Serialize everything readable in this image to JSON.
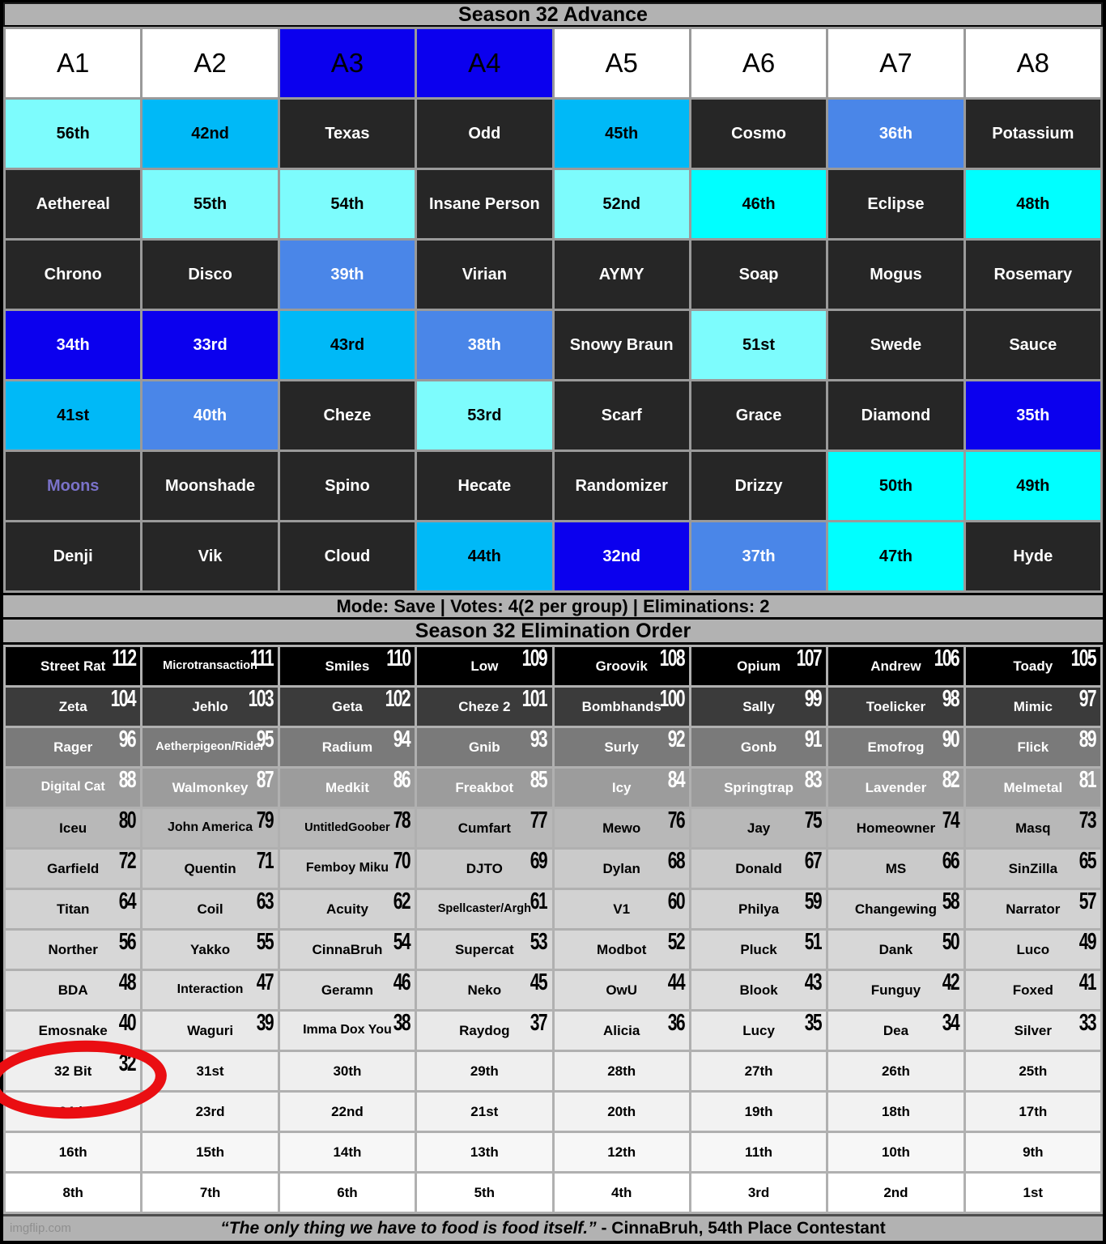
{
  "advance": {
    "title": "Season 32 Advance",
    "columns": [
      {
        "label": "A1",
        "bg": "white"
      },
      {
        "label": "A2",
        "bg": "white"
      },
      {
        "label": "A3",
        "bg": "blue"
      },
      {
        "label": "A4",
        "bg": "blue"
      },
      {
        "label": "A5",
        "bg": "white"
      },
      {
        "label": "A6",
        "bg": "white"
      },
      {
        "label": "A7",
        "bg": "white"
      },
      {
        "label": "A8",
        "bg": "white"
      }
    ],
    "rows": [
      [
        {
          "text": "56th",
          "bg": "palecyan"
        },
        {
          "text": "42nd",
          "bg": "sky"
        },
        {
          "text": "Texas",
          "bg": "dark"
        },
        {
          "text": "Odd",
          "bg": "dark"
        },
        {
          "text": "45th",
          "bg": "sky"
        },
        {
          "text": "Cosmo",
          "bg": "dark"
        },
        {
          "text": "36th",
          "bg": "corn"
        },
        {
          "text": "Potassium",
          "bg": "dark"
        }
      ],
      [
        {
          "text": "Aethereal",
          "bg": "dark"
        },
        {
          "text": "55th",
          "bg": "palecyan"
        },
        {
          "text": "54th",
          "bg": "palecyan"
        },
        {
          "text": "Insane Person",
          "bg": "dark"
        },
        {
          "text": "52nd",
          "bg": "palecyan"
        },
        {
          "text": "46th",
          "bg": "cyan"
        },
        {
          "text": "Eclipse",
          "bg": "dark"
        },
        {
          "text": "48th",
          "bg": "cyan"
        }
      ],
      [
        {
          "text": "Chrono",
          "bg": "dark"
        },
        {
          "text": "Disco",
          "bg": "dark"
        },
        {
          "text": "39th",
          "bg": "corn"
        },
        {
          "text": "Virian",
          "bg": "dark"
        },
        {
          "text": "AYMY",
          "bg": "dark"
        },
        {
          "text": "Soap",
          "bg": "dark"
        },
        {
          "text": "Mogus",
          "bg": "dark"
        },
        {
          "text": "Rosemary",
          "bg": "dark"
        }
      ],
      [
        {
          "text": "34th",
          "bg": "blue"
        },
        {
          "text": "33rd",
          "bg": "blue"
        },
        {
          "text": "43rd",
          "bg": "sky"
        },
        {
          "text": "38th",
          "bg": "corn"
        },
        {
          "text": "Snowy Braun",
          "bg": "dark"
        },
        {
          "text": "51st",
          "bg": "palecyan"
        },
        {
          "text": "Swede",
          "bg": "dark"
        },
        {
          "text": "Sauce",
          "bg": "dark"
        }
      ],
      [
        {
          "text": "41st",
          "bg": "sky"
        },
        {
          "text": "40th",
          "bg": "corn"
        },
        {
          "text": "Cheze",
          "bg": "dark"
        },
        {
          "text": "53rd",
          "bg": "palecyan"
        },
        {
          "text": "Scarf",
          "bg": "dark"
        },
        {
          "text": "Grace",
          "bg": "dark"
        },
        {
          "text": "Diamond",
          "bg": "dark"
        },
        {
          "text": "35th",
          "bg": "blue"
        }
      ],
      [
        {
          "text": "Moons",
          "bg": "dark",
          "fg": "#7a72c9"
        },
        {
          "text": "Moonshade",
          "bg": "dark"
        },
        {
          "text": "Spino",
          "bg": "dark"
        },
        {
          "text": "Hecate",
          "bg": "dark"
        },
        {
          "text": "Randomizer",
          "bg": "dark"
        },
        {
          "text": "Drizzy",
          "bg": "dark"
        },
        {
          "text": "50th",
          "bg": "cyan"
        },
        {
          "text": "49th",
          "bg": "cyan"
        }
      ],
      [
        {
          "text": "Denji",
          "bg": "dark"
        },
        {
          "text": "Vik",
          "bg": "dark"
        },
        {
          "text": "Cloud",
          "bg": "dark"
        },
        {
          "text": "44th",
          "bg": "sky"
        },
        {
          "text": "32nd",
          "bg": "blue"
        },
        {
          "text": "37th",
          "bg": "corn"
        },
        {
          "text": "47th",
          "bg": "cyan"
        },
        {
          "text": "Hyde",
          "bg": "dark"
        }
      ]
    ]
  },
  "mode_bar": "Mode: Save | Votes: 4(2 per group) | Eliminations: 2",
  "elimination": {
    "title": "Season 32 Elimination Order",
    "rows": [
      {
        "bg": "#000000",
        "fg": "#ffffff",
        "cells": [
          {
            "name": "Street Rat",
            "num": "112"
          },
          {
            "name": "Microtransaction",
            "num": "111"
          },
          {
            "name": "Smiles",
            "num": "110"
          },
          {
            "name": "Low",
            "num": "109"
          },
          {
            "name": "Groovik",
            "num": "108"
          },
          {
            "name": "Opium",
            "num": "107"
          },
          {
            "name": "Andrew",
            "num": "106"
          },
          {
            "name": "Toady",
            "num": "105"
          }
        ]
      },
      {
        "bg": "#3b3b3b",
        "fg": "#ffffff",
        "cells": [
          {
            "name": "Zeta",
            "num": "104"
          },
          {
            "name": "Jehlo",
            "num": "103"
          },
          {
            "name": "Geta",
            "num": "102"
          },
          {
            "name": "Cheze 2",
            "num": "101"
          },
          {
            "name": "Bombhands",
            "num": "100"
          },
          {
            "name": "Sally",
            "num": "99"
          },
          {
            "name": "Toelicker",
            "num": "98"
          },
          {
            "name": "Mimic",
            "num": "97"
          }
        ]
      },
      {
        "bg": "#7a7a7a",
        "fg": "#ffffff",
        "cells": [
          {
            "name": "Rager",
            "num": "96"
          },
          {
            "name": "Aetherpigeon/Rider",
            "num": "95"
          },
          {
            "name": "Radium",
            "num": "94"
          },
          {
            "name": "Gnib",
            "num": "93"
          },
          {
            "name": "Surly",
            "num": "92"
          },
          {
            "name": "Gonb",
            "num": "91"
          },
          {
            "name": "Emofrog",
            "num": "90"
          },
          {
            "name": "Flick",
            "num": "89"
          }
        ]
      },
      {
        "bg": "#9c9c9c",
        "fg": "#ffffff",
        "cells": [
          {
            "name": "Digital Cat",
            "num": "88"
          },
          {
            "name": "Walmonkey",
            "num": "87"
          },
          {
            "name": "Medkit",
            "num": "86"
          },
          {
            "name": "Freakbot",
            "num": "85"
          },
          {
            "name": "Icy",
            "num": "84"
          },
          {
            "name": "Springtrap",
            "num": "83"
          },
          {
            "name": "Lavender",
            "num": "82"
          },
          {
            "name": "Melmetal",
            "num": "81"
          }
        ]
      },
      {
        "bg": "#b8b8b8",
        "fg": "#000000",
        "cells": [
          {
            "name": "Iceu",
            "num": "80"
          },
          {
            "name": "John America",
            "num": "79"
          },
          {
            "name": "UntitledGoober",
            "num": "78"
          },
          {
            "name": "Cumfart",
            "num": "77"
          },
          {
            "name": "Mewo",
            "num": "76"
          },
          {
            "name": "Jay",
            "num": "75"
          },
          {
            "name": "Homeowner",
            "num": "74"
          },
          {
            "name": "Masq",
            "num": "73"
          }
        ]
      },
      {
        "bg": "#cacaca",
        "fg": "#000000",
        "cells": [
          {
            "name": "Garfield",
            "num": "72"
          },
          {
            "name": "Quentin",
            "num": "71"
          },
          {
            "name": "Femboy Miku",
            "num": "70"
          },
          {
            "name": "DJTO",
            "num": "69"
          },
          {
            "name": "Dylan",
            "num": "68"
          },
          {
            "name": "Donald",
            "num": "67"
          },
          {
            "name": "MS",
            "num": "66"
          },
          {
            "name": "SinZilla",
            "num": "65"
          }
        ]
      },
      {
        "bg": "#d2d2d2",
        "fg": "#000000",
        "cells": [
          {
            "name": "Titan",
            "num": "64"
          },
          {
            "name": "Coil",
            "num": "63"
          },
          {
            "name": "Acuity",
            "num": "62"
          },
          {
            "name": "Spellcaster/Argh",
            "num": "61"
          },
          {
            "name": "V1",
            "num": "60"
          },
          {
            "name": "Philya",
            "num": "59"
          },
          {
            "name": "Changewing",
            "num": "58"
          },
          {
            "name": "Narrator",
            "num": "57"
          }
        ]
      },
      {
        "bg": "#d7d7d7",
        "fg": "#000000",
        "cells": [
          {
            "name": "Norther",
            "num": "56"
          },
          {
            "name": "Yakko",
            "num": "55"
          },
          {
            "name": "CinnaBruh",
            "num": "54"
          },
          {
            "name": "Supercat",
            "num": "53"
          },
          {
            "name": "Modbot",
            "num": "52"
          },
          {
            "name": "Pluck",
            "num": "51"
          },
          {
            "name": "Dank",
            "num": "50"
          },
          {
            "name": "Luco",
            "num": "49"
          }
        ]
      },
      {
        "bg": "#dcdcdc",
        "fg": "#000000",
        "cells": [
          {
            "name": "BDA",
            "num": "48"
          },
          {
            "name": "Interaction",
            "num": "47"
          },
          {
            "name": "Geramn",
            "num": "46"
          },
          {
            "name": "Neko",
            "num": "45"
          },
          {
            "name": "OwU",
            "num": "44"
          },
          {
            "name": "Blook",
            "num": "43"
          },
          {
            "name": "Funguy",
            "num": "42"
          },
          {
            "name": "Foxed",
            "num": "41"
          }
        ]
      },
      {
        "bg": "#e9e9e9",
        "fg": "#000000",
        "cells": [
          {
            "name": "Emosnake",
            "num": "40"
          },
          {
            "name": "Waguri",
            "num": "39"
          },
          {
            "name": "Imma Dox You",
            "num": "38"
          },
          {
            "name": "Raydog",
            "num": "37"
          },
          {
            "name": "Alicia",
            "num": "36"
          },
          {
            "name": "Lucy",
            "num": "35"
          },
          {
            "name": "Dea",
            "num": "34"
          },
          {
            "name": "Silver",
            "num": "33"
          }
        ]
      },
      {
        "bg": "#efefef",
        "fg": "#000000",
        "cells": [
          {
            "name": "32 Bit",
            "num": "32"
          },
          {
            "name": "31st",
            "num": null
          },
          {
            "name": "30th",
            "num": null
          },
          {
            "name": "29th",
            "num": null
          },
          {
            "name": "28th",
            "num": null
          },
          {
            "name": "27th",
            "num": null
          },
          {
            "name": "26th",
            "num": null
          },
          {
            "name": "25th",
            "num": null
          }
        ]
      },
      {
        "bg": "#f2f2f2",
        "fg": "#000000",
        "cells": [
          {
            "name": "24th",
            "num": null
          },
          {
            "name": "23rd",
            "num": null
          },
          {
            "name": "22nd",
            "num": null
          },
          {
            "name": "21st",
            "num": null
          },
          {
            "name": "20th",
            "num": null
          },
          {
            "name": "19th",
            "num": null
          },
          {
            "name": "18th",
            "num": null
          },
          {
            "name": "17th",
            "num": null
          }
        ]
      },
      {
        "bg": "#f7f7f7",
        "fg": "#000000",
        "cells": [
          {
            "name": "16th",
            "num": null
          },
          {
            "name": "15th",
            "num": null
          },
          {
            "name": "14th",
            "num": null
          },
          {
            "name": "13th",
            "num": null
          },
          {
            "name": "12th",
            "num": null
          },
          {
            "name": "11th",
            "num": null
          },
          {
            "name": "10th",
            "num": null
          },
          {
            "name": "9th",
            "num": null
          }
        ]
      },
      {
        "bg": "#ffffff",
        "fg": "#000000",
        "cells": [
          {
            "name": "8th",
            "num": null
          },
          {
            "name": "7th",
            "num": null
          },
          {
            "name": "6th",
            "num": null
          },
          {
            "name": "5th",
            "num": null
          },
          {
            "name": "4th",
            "num": null
          },
          {
            "name": "3rd",
            "num": null
          },
          {
            "name": "2nd",
            "num": null
          },
          {
            "name": "1st",
            "num": null
          }
        ]
      }
    ]
  },
  "quote": {
    "text": "“The only thing we have to food is food itself.”",
    "attribution": " - CinnaBruh, 54th Place Contestant"
  },
  "watermark": "imgflip.com",
  "annotation": {
    "shape": "red-ellipse",
    "target": "32 Bit",
    "color": "#ea0e12"
  },
  "colors": {
    "blue": "#0b00ee",
    "sky_blue": "#00b9f7",
    "cornflower": "#4a86e8",
    "cyan": "#00ffff",
    "pale_cyan": "#7dfcfd",
    "dark_cell": "#262626",
    "header_gray": "#b2b2b2",
    "moons_text": "#7a72c9"
  }
}
